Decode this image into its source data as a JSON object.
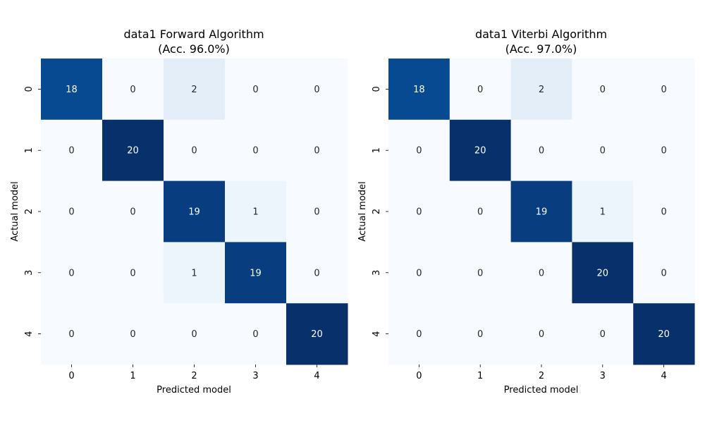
{
  "chart_data": [
    {
      "type": "heatmap",
      "title_line1": "data1 Forward Algorithm",
      "title_line2": "(Acc. 96.0%)",
      "xlabel": "Predicted model",
      "ylabel": "Actual model",
      "x_categories": [
        "0",
        "1",
        "2",
        "3",
        "4"
      ],
      "y_categories": [
        "0",
        "1",
        "2",
        "3",
        "4"
      ],
      "matrix": [
        [
          18,
          0,
          2,
          0,
          0
        ],
        [
          0,
          20,
          0,
          0,
          0
        ],
        [
          0,
          0,
          19,
          1,
          0
        ],
        [
          0,
          0,
          1,
          19,
          0
        ],
        [
          0,
          0,
          0,
          0,
          20
        ]
      ],
      "color_range": [
        0,
        20
      ],
      "colormap": "Blues",
      "colorbar": false
    },
    {
      "type": "heatmap",
      "title_line1": "data1 Viterbi Algorithm",
      "title_line2": "(Acc. 97.0%)",
      "xlabel": "Predicted model",
      "ylabel": "Actual model",
      "x_categories": [
        "0",
        "1",
        "2",
        "3",
        "4"
      ],
      "y_categories": [
        "0",
        "1",
        "2",
        "3",
        "4"
      ],
      "matrix": [
        [
          18,
          0,
          2,
          0,
          0
        ],
        [
          0,
          20,
          0,
          0,
          0
        ],
        [
          0,
          0,
          19,
          1,
          0
        ],
        [
          0,
          0,
          0,
          20,
          0
        ],
        [
          0,
          0,
          0,
          0,
          20
        ]
      ],
      "color_range": [
        0,
        20
      ],
      "colormap": "Blues",
      "colorbar": false
    }
  ],
  "colors": {
    "low": "#f7fbff",
    "high": "#08306b",
    "text_dark": "#262626",
    "text_light": "#ffffff"
  }
}
